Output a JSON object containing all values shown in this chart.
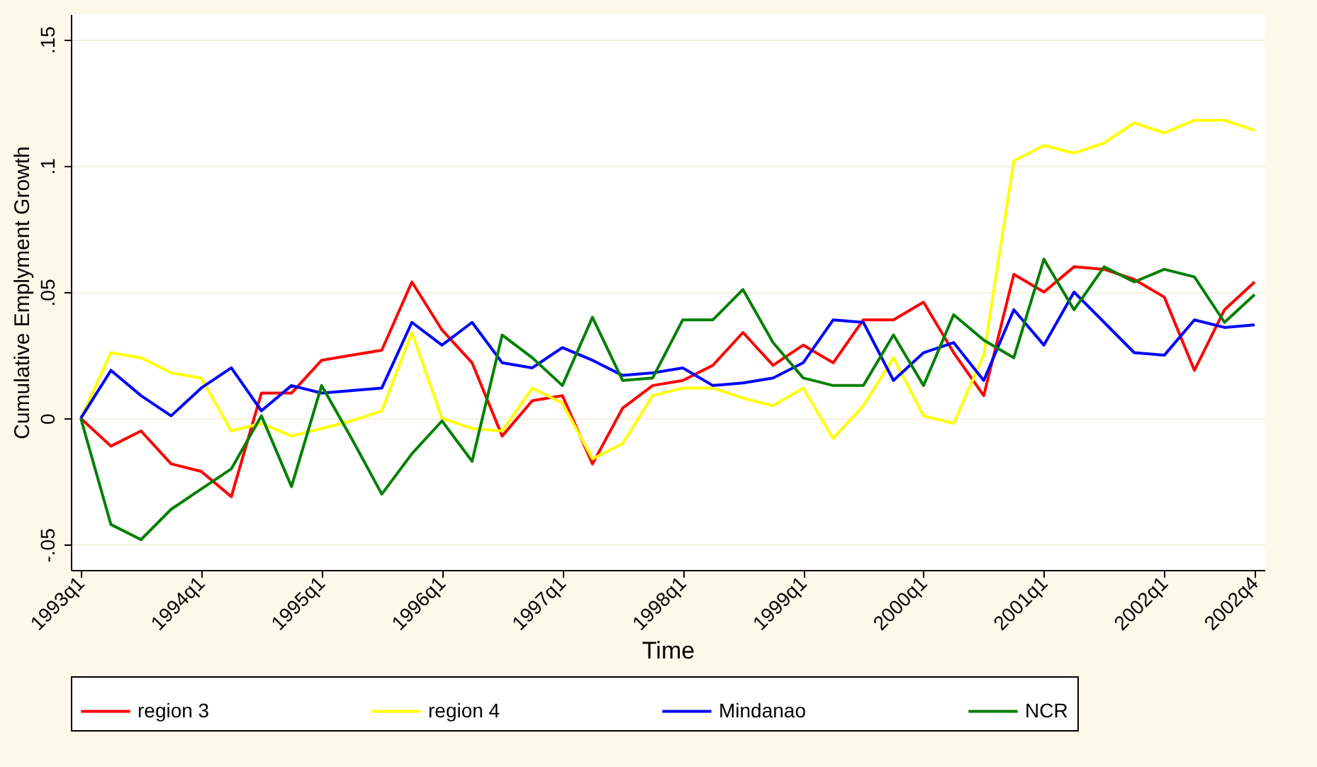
{
  "chart_data": {
    "type": "line",
    "xlabel": "Time",
    "ylabel": "Cumulative Emplyment Growth",
    "categories": [
      "1993q1",
      null,
      null,
      null,
      "1994q1",
      null,
      null,
      null,
      "1995q1",
      null,
      null,
      null,
      "1996q1",
      null,
      null,
      null,
      "1997q1",
      null,
      null,
      null,
      "1998q1",
      null,
      null,
      null,
      "1999q1",
      null,
      null,
      null,
      "2000q1",
      null,
      null,
      null,
      "2001q1",
      null,
      null,
      null,
      "2002q1",
      null,
      null,
      "2002q4"
    ],
    "series": [
      {
        "name": "region 3",
        "color": "#ff0000",
        "values": [
          0,
          -0.011,
          -0.005,
          -0.018,
          -0.021,
          -0.031,
          0.01,
          0.01,
          0.023,
          0.025,
          0.027,
          0.054,
          0.035,
          0.022,
          -0.007,
          0.007,
          0.009,
          -0.018,
          0.004,
          0.013,
          0.015,
          0.021,
          0.034,
          0.021,
          0.029,
          0.022,
          0.039,
          0.039,
          0.046,
          0.026,
          0.009,
          0.057,
          0.05,
          0.06,
          0.059,
          0.055,
          0.048,
          0.019,
          0.043,
          0.054
        ]
      },
      {
        "name": "region 4",
        "color": "#ffff00",
        "values": [
          0,
          0.026,
          0.024,
          0.018,
          0.016,
          -0.005,
          -0.002,
          -0.007,
          -0.004,
          -0.001,
          0.003,
          0.034,
          0.0,
          -0.004,
          -0.005,
          0.012,
          0.006,
          -0.016,
          -0.01,
          0.009,
          0.012,
          0.012,
          0.008,
          0.005,
          0.012,
          -0.008,
          0.005,
          0.024,
          0.001,
          -0.002,
          0.025,
          0.102,
          0.108,
          0.105,
          0.109,
          0.117,
          0.113,
          0.118,
          0.118,
          0.114
        ]
      },
      {
        "name": "Mindanao",
        "color": "#0000ff",
        "values": [
          0,
          0.019,
          0.009,
          0.001,
          0.012,
          0.02,
          0.003,
          0.013,
          0.01,
          0.011,
          0.012,
          0.038,
          0.029,
          0.038,
          0.022,
          0.02,
          0.028,
          0.023,
          0.017,
          0.018,
          0.02,
          0.013,
          0.014,
          0.016,
          0.022,
          0.039,
          0.038,
          0.015,
          0.026,
          0.03,
          0.015,
          0.043,
          0.029,
          0.05,
          0.038,
          0.026,
          0.025,
          0.039,
          0.036,
          0.037
        ]
      },
      {
        "name": "NCR",
        "color": "#008000",
        "values": [
          0,
          -0.042,
          -0.048,
          -0.036,
          -0.028,
          -0.02,
          0.001,
          -0.027,
          0.013,
          -0.008,
          -0.03,
          -0.014,
          -0.001,
          -0.017,
          0.033,
          0.024,
          0.013,
          0.04,
          0.015,
          0.016,
          0.039,
          0.039,
          0.051,
          0.03,
          0.016,
          0.013,
          0.013,
          0.033,
          0.013,
          0.041,
          0.031,
          0.024,
          0.063,
          0.043,
          0.06,
          0.054,
          0.059,
          0.056,
          0.038,
          0.049
        ]
      }
    ],
    "ylim": [
      -0.06,
      0.16
    ],
    "yticks": [
      {
        "value": -0.05,
        "label": "-.05"
      },
      0,
      {
        "value": 0.05,
        "label": ".05"
      },
      {
        "value": 0.1,
        "label": ".1"
      },
      {
        "value": 0.15,
        "label": ".15"
      }
    ],
    "grid": "y",
    "legend": "bottom",
    "marker": "none",
    "line_style": "solid"
  }
}
